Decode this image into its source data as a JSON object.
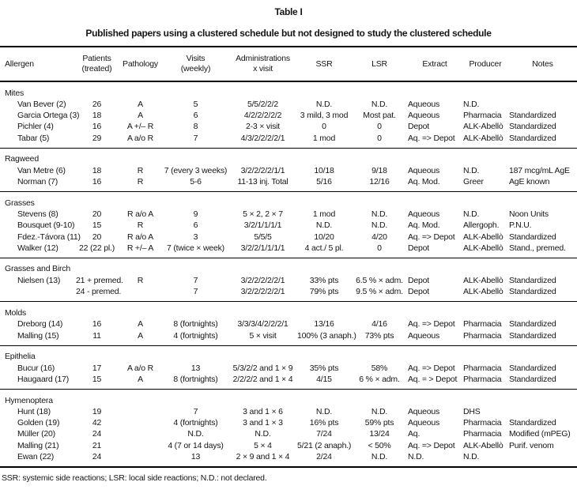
{
  "title": "Table I",
  "subtitle": "Published papers using a clustered schedule but not designed to study the clustered schedule",
  "footnote": "SSR: systemic side reactions; LSR: local side reactions; N.D.: not declared.",
  "table": {
    "columns": [
      {
        "id": "allergen",
        "lines": [
          "Allergen"
        ],
        "align": "left"
      },
      {
        "id": "patients",
        "lines": [
          "Patients",
          "(treated)"
        ],
        "align": "center"
      },
      {
        "id": "pathology",
        "lines": [
          "Pathology"
        ],
        "align": "center"
      },
      {
        "id": "visits",
        "lines": [
          "Visits",
          "(weekly)"
        ],
        "align": "center"
      },
      {
        "id": "administrations",
        "lines": [
          "Administrations",
          "x visit"
        ],
        "align": "center"
      },
      {
        "id": "ssr",
        "lines": [
          "SSR"
        ],
        "align": "center"
      },
      {
        "id": "lsr",
        "lines": [
          "LSR"
        ],
        "align": "center"
      },
      {
        "id": "extract",
        "lines": [
          "Extract"
        ],
        "align": "left"
      },
      {
        "id": "producer",
        "lines": [
          "Producer"
        ],
        "align": "left"
      },
      {
        "id": "notes",
        "lines": [
          "Notes"
        ],
        "align": "left"
      }
    ],
    "sections": [
      {
        "id": "mites",
        "label": "Mites",
        "rows": [
          [
            "Van Bever (2)",
            "26",
            "A",
            "5",
            "5/5/2/2/2",
            "N.D.",
            "N.D.",
            "Aqueous",
            "N.D.",
            ""
          ],
          [
            "Garcia Ortega (3)",
            "18",
            "A",
            "6",
            "4/2/2/2/2/2",
            "3 mild, 3 mod",
            "Most pat.",
            "Aqueous",
            "Pharmacia",
            "Standardized"
          ],
          [
            "Pichler (4)",
            "16",
            "A +/– R",
            "8",
            "2-3 × visit",
            "0",
            "0",
            "Depot",
            "ALK-Abellò",
            "Standardized"
          ],
          [
            "Tabar (5)",
            "29",
            "A a/o R",
            "7",
            "4/3/2/2/2/2/1",
            "1 mod",
            "0",
            "Aq. => Depot",
            "ALK-Abellò",
            "Standardized"
          ]
        ]
      },
      {
        "id": "ragweed",
        "label": "Ragweed",
        "rows": [
          [
            "Van Metre (6)",
            "18",
            "R",
            "7 (every 3 weeks)",
            "3/2/2/2/2/1/1",
            "10/18",
            "9/18",
            "Aqueous",
            "N.D.",
            "187 mcg/mL AgE"
          ],
          [
            "Norman (7)",
            "16",
            "R",
            "5-6",
            "11-13 inj. Total",
            "5/16",
            "12/16",
            "Aq. Mod.",
            "Greer",
            "AgE known"
          ]
        ]
      },
      {
        "id": "grasses",
        "label": "Grasses",
        "rows": [
          [
            "Stevens (8)",
            "20",
            "R a/o A",
            "9",
            "5 × 2, 2 × 7",
            "1 mod",
            "N.D.",
            "Aqueous",
            "N.D.",
            "Noon Units"
          ],
          [
            "Bousquet (9-10)",
            "15",
            "R",
            "6",
            "3/2/1/1/1/1",
            "N.D.",
            "N.D.",
            "Aq. Mod.",
            "Allergoph.",
            "P.N.U."
          ],
          [
            "Fdez.-Távora (11)",
            "20",
            "R a/o A",
            "3",
            "5/5/5",
            "10/20",
            "4/20",
            "Aq. => Depot",
            "ALK-Abellò",
            "Standardized"
          ],
          [
            "Walker (12)",
            "22 (22 pl.)",
            "R +/– A",
            "7 (twice × week)",
            "3/2/2/1/1/1/1",
            "4 act./ 5 pl.",
            "0",
            "Depot",
            "ALK-Abellò",
            "Stand., premed."
          ]
        ]
      },
      {
        "id": "grasses-and-birch",
        "label": "Grasses and Birch",
        "rows": [
          [
            "Nielsen (13)",
            "21 + premed.",
            "R",
            "7",
            "3/2/2/2/2/2/1",
            "33% pts",
            "6.5 % × adm.",
            "Depot",
            "ALK-Abellò",
            "Standardized"
          ],
          [
            "",
            "24 - premed.",
            "",
            "7",
            "3/2/2/2/2/2/1",
            "79% pts",
            "9.5 % × adm.",
            "Depot",
            "ALK-Abellò",
            "Standardized"
          ]
        ]
      },
      {
        "id": "molds",
        "label": "Molds",
        "rows": [
          [
            "Dreborg (14)",
            "16",
            "A",
            "8 (fortnights)",
            "3/3/3/4/2/2/2/1",
            "13/16",
            "4/16",
            "Aq. => Depot",
            "Pharmacia",
            "Standardized"
          ],
          [
            "Malling (15)",
            "11",
            "A",
            "4 (fortnights)",
            "5 × visit",
            "100% (3 anaph.)",
            "73% pts",
            "Aqueous",
            "Pharmacia",
            "Standardized"
          ]
        ]
      },
      {
        "id": "epithelia",
        "label": "Epithelia",
        "rows": [
          [
            "Bucur (16)",
            "17",
            "A a/o R",
            "13",
            "5/3/2/2 and 1 × 9",
            "35% pts",
            "58%",
            "Aq. => Depot",
            "Pharmacia",
            "Standardized"
          ],
          [
            "Haugaard (17)",
            "15",
            "A",
            "8 (fortnights)",
            "2/2/2/2 and 1 × 4",
            "4/15",
            "6 % × adm.",
            "Aq. = > Depot",
            "Pharmacia",
            "Standardized"
          ]
        ]
      },
      {
        "id": "hymenoptera",
        "label": "Hymenoptera",
        "rows": [
          [
            "Hunt (18)",
            "19",
            "",
            "7",
            "3 and 1 × 6",
            "N.D.",
            "N.D.",
            "Aqueous",
            "DHS",
            ""
          ],
          [
            "Golden (19)",
            "42",
            "",
            "4 (fortnights)",
            "3 and 1 × 3",
            "16% pts",
            "59% pts",
            "Aqueous",
            "Pharmacia",
            "Standardized"
          ],
          [
            "Müller (20)",
            "24",
            "",
            "N.D.",
            "N.D.",
            "7/24",
            "13/24",
            "Aq.",
            "Pharmacia",
            "Modified (mPEG)"
          ],
          [
            "Malling (21)",
            "21",
            "",
            "4 (7 or 14 days)",
            "5 × 4",
            "5/21 (2 anaph.)",
            "< 50%",
            "Aq. => Depot",
            "ALK-Abellò",
            "Purif. venom"
          ],
          [
            "Ewan (22)",
            "24",
            "",
            "13",
            "2 × 9 and 1 × 4",
            "2/24",
            "N.D.",
            "N.D.",
            "N.D.",
            ""
          ]
        ]
      }
    ]
  }
}
